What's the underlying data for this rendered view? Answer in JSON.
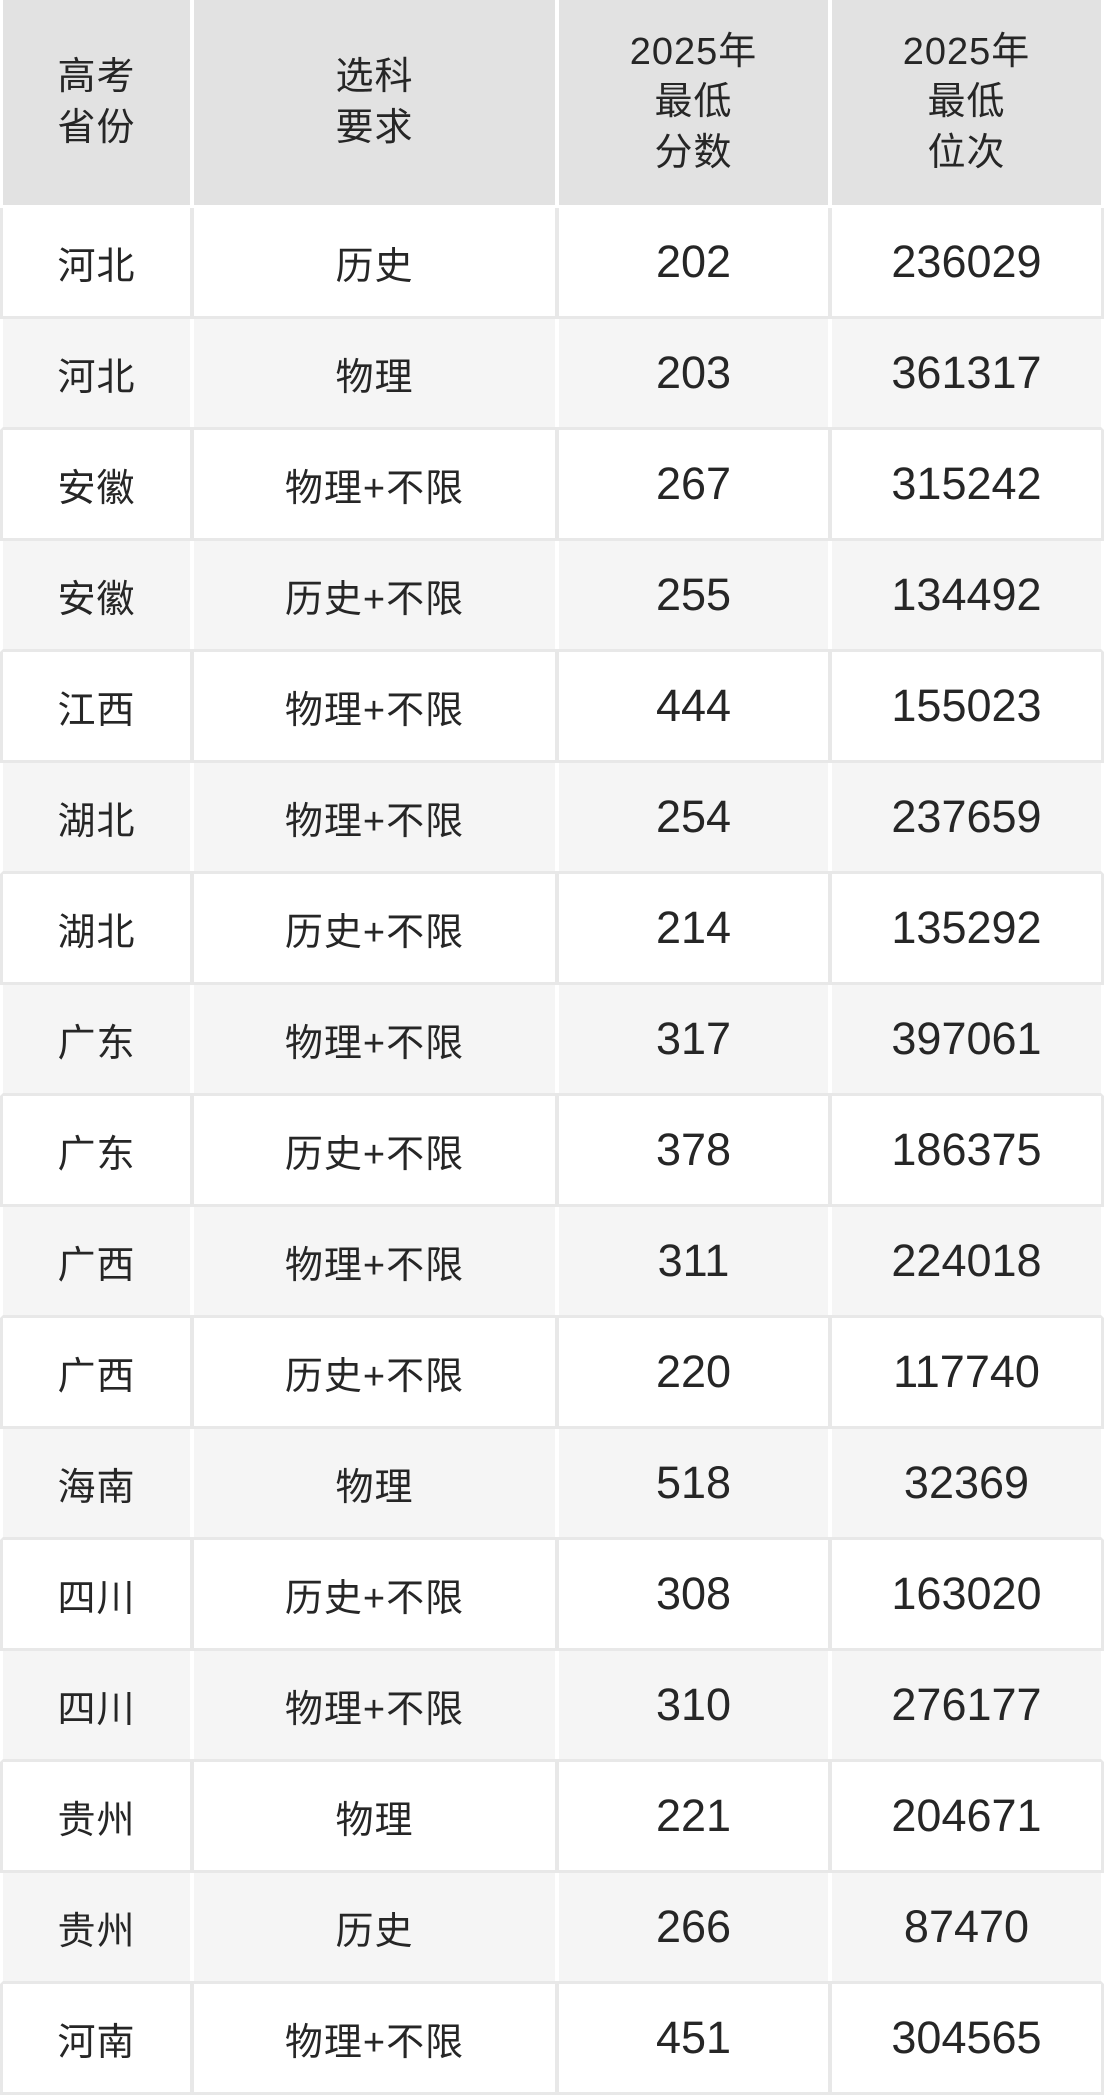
{
  "chart_data": {
    "type": "table",
    "columns": [
      "高考省份",
      "选科要求",
      "2025年最低分数",
      "2025年最低位次"
    ],
    "rows": [
      [
        "河北",
        "历史",
        "202",
        "236029"
      ],
      [
        "河北",
        "物理",
        "203",
        "361317"
      ],
      [
        "安徽",
        "物理+不限",
        "267",
        "315242"
      ],
      [
        "安徽",
        "历史+不限",
        "255",
        "134492"
      ],
      [
        "江西",
        "物理+不限",
        "444",
        "155023"
      ],
      [
        "湖北",
        "物理+不限",
        "254",
        "237659"
      ],
      [
        "湖北",
        "历史+不限",
        "214",
        "135292"
      ],
      [
        "广东",
        "物理+不限",
        "317",
        "397061"
      ],
      [
        "广东",
        "历史+不限",
        "378",
        "186375"
      ],
      [
        "广西",
        "物理+不限",
        "311",
        "224018"
      ],
      [
        "广西",
        "历史+不限",
        "220",
        "117740"
      ],
      [
        "海南",
        "物理",
        "518",
        "32369"
      ],
      [
        "四川",
        "历史+不限",
        "308",
        "163020"
      ],
      [
        "四川",
        "物理+不限",
        "310",
        "276177"
      ],
      [
        "贵州",
        "物理",
        "221",
        "204671"
      ],
      [
        "贵州",
        "历史",
        "266",
        "87470"
      ],
      [
        "河南",
        "物理+不限",
        "451",
        "304565"
      ]
    ]
  },
  "header": {
    "cols": [
      {
        "lines": [
          "高考",
          "省份"
        ]
      },
      {
        "lines": [
          "选科",
          "要求"
        ]
      },
      {
        "lines": [
          "2025年",
          "最低",
          "分数"
        ]
      },
      {
        "lines": [
          "2025年",
          "最低",
          "位次"
        ]
      }
    ]
  },
  "colors": {
    "header_bg": "#e2e2e2",
    "stripe_bg": "#f5f5f5",
    "row_bg": "#ffffff",
    "grid_line": "#e8e8e8",
    "text": "#262626"
  }
}
